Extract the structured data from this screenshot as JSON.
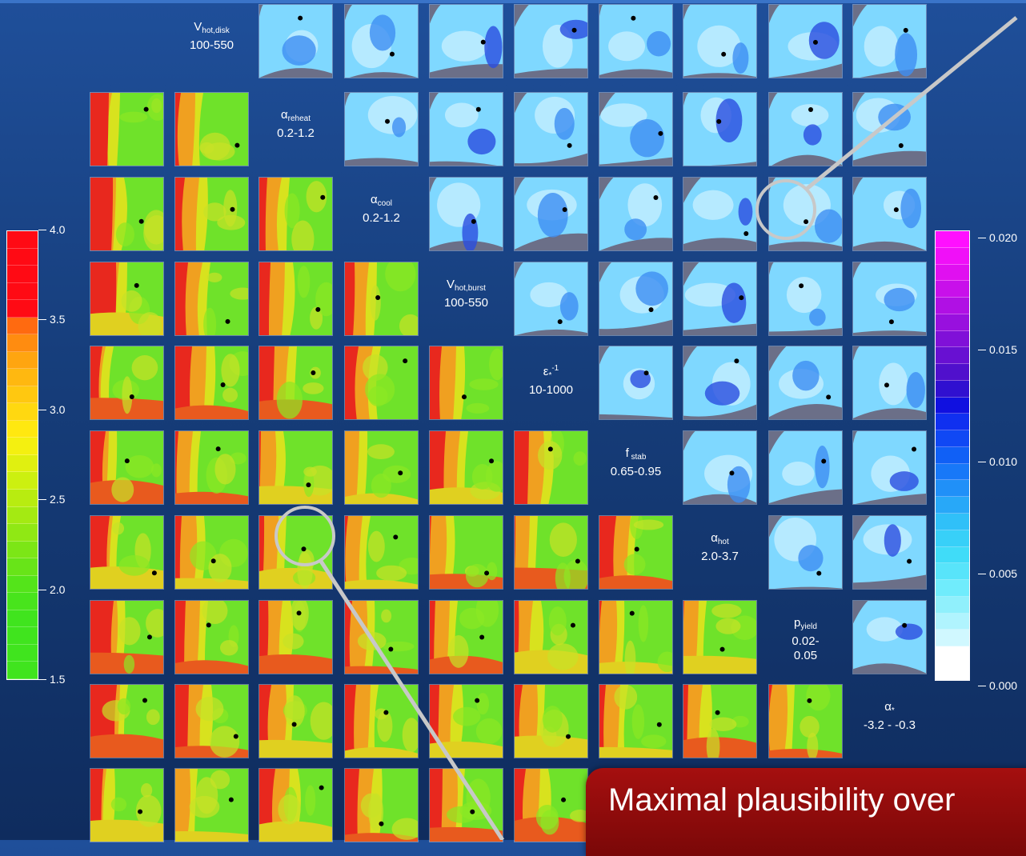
{
  "chart_data": {
    "type": "heatmap",
    "parameters": [
      {
        "symbol": "V",
        "sub": "hot,disk",
        "sup": "",
        "range": "100-550"
      },
      {
        "symbol": "α",
        "sub": "reheat",
        "sup": "",
        "range": "0.2-1.2"
      },
      {
        "symbol": "α",
        "sub": "cool",
        "sup": "",
        "range": "0.2-1.2"
      },
      {
        "symbol": "V",
        "sub": "hot,burst",
        "sup": "",
        "range": "100-550"
      },
      {
        "symbol": "ε",
        "sub": "*",
        "sup": "-1",
        "range": "10-1000"
      },
      {
        "symbol": "f",
        "sub": " stab",
        "sup": "",
        "range": "0.65-0.95"
      },
      {
        "symbol": "α",
        "sub": "hot",
        "sup": "",
        "range": "2.0-3.7"
      },
      {
        "symbol": "p",
        "sub": "yield",
        "sup": "",
        "range": "0.02-\n0.05"
      },
      {
        "symbol": "α",
        "sub": "*",
        "sup": "",
        "range": "-3.2 - -0.3"
      }
    ],
    "left_colorbar": {
      "ticks": [
        "4.0",
        "3.5",
        "3.0",
        "2.5",
        "2.0",
        "1.5"
      ],
      "range": [
        1.5,
        4.0
      ]
    },
    "right_colorbar": {
      "ticks": [
        "0.020",
        "0.015",
        "0.010",
        "0.005",
        "0.000"
      ],
      "range": [
        0.0,
        0.02
      ]
    },
    "callout_text": "Maximal  plausibility over"
  },
  "colors": {
    "background": "#163d7a",
    "masked": "#6b6f88",
    "callout": "#9a0c0c",
    "circle": "#c8c8c8"
  }
}
